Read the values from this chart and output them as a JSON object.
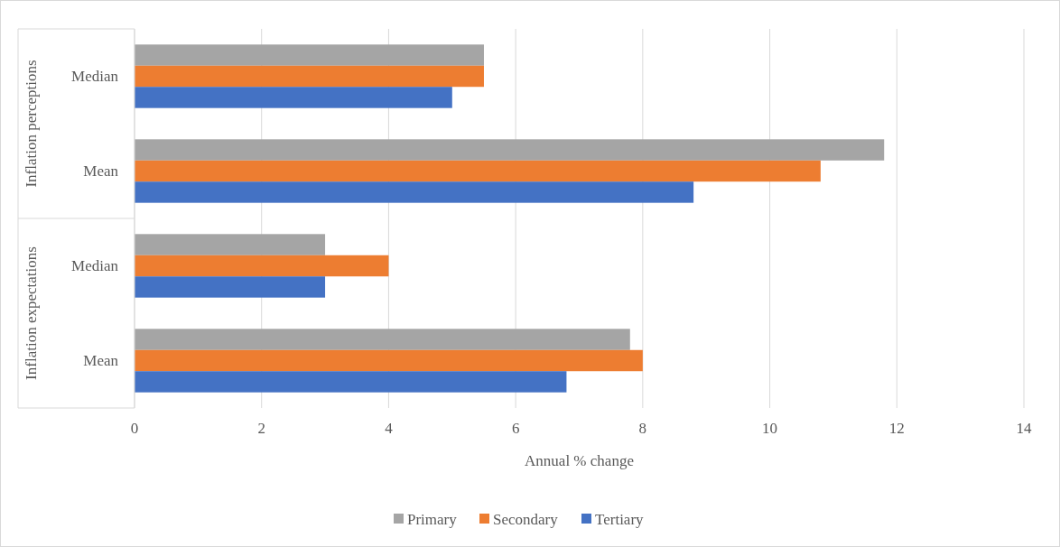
{
  "chart_data": {
    "type": "bar",
    "orientation": "horizontal",
    "xlabel": "Annual % change",
    "categories": [
      "Median",
      "Mean",
      "Median",
      "Mean"
    ],
    "annotations": [
      "Inflation perceptions",
      "Inflation expectations"
    ],
    "series": [
      {
        "name": "Primary",
        "color": "#a5a5a5",
        "values": [
          5.5,
          11.8,
          3.0,
          7.8
        ]
      },
      {
        "name": "Secondary",
        "color": "#ed7d31",
        "values": [
          5.5,
          10.8,
          4.0,
          8.0
        ]
      },
      {
        "name": "Tertiary",
        "color": "#4472c4",
        "values": [
          5.0,
          8.8,
          3.0,
          6.8
        ]
      }
    ],
    "xlim": [
      0,
      14
    ],
    "xticks": [
      0,
      2,
      4,
      6,
      8,
      10,
      12,
      14
    ],
    "grid": "x",
    "legend": "bottom"
  }
}
